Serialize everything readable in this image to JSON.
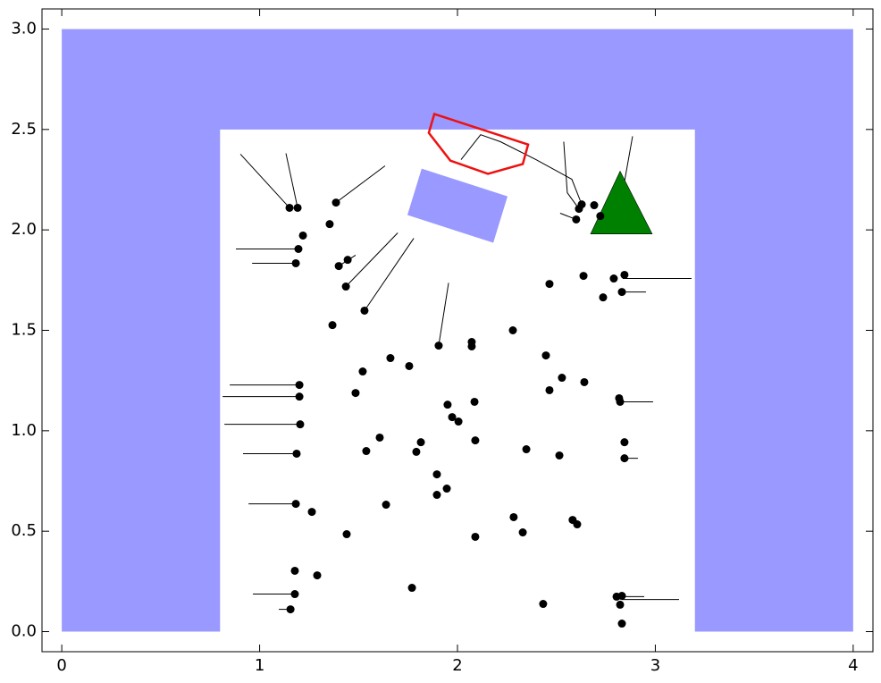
{
  "chart_data": {
    "type": "scatter",
    "xlim": [
      -0.1,
      4.1
    ],
    "ylim": [
      -0.1,
      3.1
    ],
    "xticks": [
      0,
      1,
      2,
      3,
      4
    ],
    "yticks": [
      {
        "value": 0,
        "label": "0.0"
      },
      {
        "value": 0.5,
        "label": "0.5"
      },
      {
        "value": 1,
        "label": "1.0"
      },
      {
        "value": 1.5,
        "label": "1.5"
      },
      {
        "value": 2,
        "label": "2.0"
      },
      {
        "value": 2.5,
        "label": "2.5"
      },
      {
        "value": 3,
        "label": "3.0"
      }
    ],
    "color": "#000000",
    "x": [
      1.151,
      1.192,
      1.219,
      1.196,
      1.183,
      1.386,
      1.354,
      1.445,
      1.4,
      1.436,
      1.53,
      1.368,
      1.905,
      2.072,
      2.072,
      2.28,
      1.661,
      1.756,
      1.521,
      1.201,
      1.201,
      1.485,
      1.95,
      2.086,
      1.973,
      2.005,
      1.205,
      1.607,
      1.815,
      1.792,
      1.539,
      2.09,
      1.187,
      1.896,
      1.946,
      1.896,
      1.183,
      1.264,
      1.639,
      2.284,
      2.33,
      1.44,
      2.09,
      1.178,
      1.291,
      1.178,
      1.77,
      1.156,
      2.433,
      2.447,
      2.528,
      2.465,
      2.641,
      2.822,
      2.817,
      2.348,
      2.515,
      2.844,
      2.844,
      2.582,
      2.605,
      2.465,
      2.637,
      2.79,
      2.844,
      2.831,
      2.736,
      2.804,
      2.831,
      2.822,
      2.831,
      2.6,
      2.628,
      2.614,
      2.691,
      2.722
    ],
    "y": [
      2.11,
      2.11,
      1.972,
      1.905,
      1.834,
      2.136,
      2.029,
      1.851,
      1.82,
      1.718,
      1.598,
      1.526,
      1.424,
      1.442,
      1.42,
      1.5,
      1.362,
      1.322,
      1.295,
      1.228,
      1.17,
      1.188,
      1.13,
      1.144,
      1.068,
      1.046,
      1.032,
      0.966,
      0.943,
      0.895,
      0.899,
      0.952,
      0.886,
      0.783,
      0.712,
      0.681,
      0.636,
      0.596,
      0.632,
      0.57,
      0.494,
      0.485,
      0.472,
      0.303,
      0.28,
      0.187,
      0.218,
      0.111,
      0.138,
      1.375,
      1.264,
      1.202,
      1.242,
      1.144,
      1.162,
      0.908,
      0.877,
      0.943,
      0.863,
      0.556,
      0.534,
      1.731,
      1.771,
      1.758,
      1.776,
      1.691,
      1.664,
      0.174,
      0.178,
      0.134,
      0.04,
      2.052,
      2.127,
      2.105,
      2.123,
      2.069
    ],
    "obstacles": [
      {
        "color": "#9999ff",
        "x": [
          0,
          0,
          4,
          4,
          3.2,
          3.2,
          0.8,
          0.8
        ],
        "y": [
          0,
          3,
          3,
          0,
          0,
          2.5,
          2.5,
          0
        ]
      },
      {
        "color": "#9999ff",
        "x": [
          1.819,
          2.253,
          2.181,
          1.747
        ],
        "y": [
          2.305,
          2.167,
          1.936,
          2.074
        ]
      }
    ],
    "outline": {
      "color": "#ee1111",
      "x": [
        1.883,
        2.357,
        2.33,
        2.154,
        1.964,
        1.855
      ],
      "y": [
        2.577,
        2.425,
        2.328,
        2.279,
        2.345,
        2.483
      ]
    },
    "goal": {
      "color": "#008000",
      "x": [
        2.822,
        2.673,
        2.984
      ],
      "y": [
        2.292,
        1.98,
        1.98
      ]
    },
    "trails": [
      {
        "x": [
          0.88,
          1.196
        ],
        "y": [
          1.905,
          1.905
        ]
      },
      {
        "x": [
          0.962,
          1.183
        ],
        "y": [
          1.834,
          1.834
        ]
      },
      {
        "x": [
          0.849,
          1.201
        ],
        "y": [
          1.228,
          1.228
        ]
      },
      {
        "x": [
          0.813,
          1.201
        ],
        "y": [
          1.17,
          1.17
        ]
      },
      {
        "x": [
          0.822,
          1.205
        ],
        "y": [
          1.032,
          1.032
        ]
      },
      {
        "x": [
          0.916,
          1.187
        ],
        "y": [
          0.886,
          0.886
        ]
      },
      {
        "x": [
          0.944,
          1.183
        ],
        "y": [
          0.636,
          0.636
        ]
      },
      {
        "x": [
          0.966,
          1.178
        ],
        "y": [
          0.187,
          0.187
        ]
      },
      {
        "x": [
          1.097,
          1.156
        ],
        "y": [
          0.111,
          0.111
        ]
      },
      {
        "x": [
          2.835,
          3.183
        ],
        "y": [
          1.758,
          1.758
        ]
      },
      {
        "x": [
          2.831,
          2.953
        ],
        "y": [
          1.691,
          1.691
        ]
      },
      {
        "x": [
          2.822,
          2.989
        ],
        "y": [
          1.144,
          1.144
        ]
      },
      {
        "x": [
          2.844,
          2.912
        ],
        "y": [
          0.863,
          0.863
        ]
      },
      {
        "x": [
          2.804,
          2.944
        ],
        "y": [
          0.174,
          0.174
        ]
      },
      {
        "x": [
          2.831,
          3.12
        ],
        "y": [
          0.16,
          0.16
        ]
      },
      {
        "x": [
          0.903,
          1.151
        ],
        "y": [
          2.377,
          2.11
        ]
      },
      {
        "x": [
          1.133,
          1.192
        ],
        "y": [
          2.381,
          2.11
        ]
      },
      {
        "x": [
          1.698,
          1.436
        ],
        "y": [
          1.985,
          1.718
        ]
      },
      {
        "x": [
          1.779,
          1.53
        ],
        "y": [
          1.958,
          1.598
        ]
      },
      {
        "x": [
          1.955,
          1.905
        ],
        "y": [
          1.736,
          1.424
        ]
      },
      {
        "x": [
          1.634,
          1.386
        ],
        "y": [
          2.319,
          2.136
        ]
      },
      {
        "x": [
          1.485,
          1.4
        ],
        "y": [
          1.874,
          1.82
        ]
      },
      {
        "x": [
          2.885,
          2.822
        ],
        "y": [
          2.466,
          2.118
        ]
      },
      {
        "x": [
          2.519,
          2.6
        ],
        "y": [
          2.083,
          2.052
        ]
      },
      {
        "x": [
          2.018,
          2.117,
          2.217,
          2.397,
          2.578,
          2.628
        ],
        "y": [
          2.35,
          2.474,
          2.439,
          2.35,
          2.252,
          2.127
        ]
      },
      {
        "x": [
          2.537,
          2.555,
          2.614
        ],
        "y": [
          2.439,
          2.185,
          2.105
        ]
      }
    ]
  }
}
